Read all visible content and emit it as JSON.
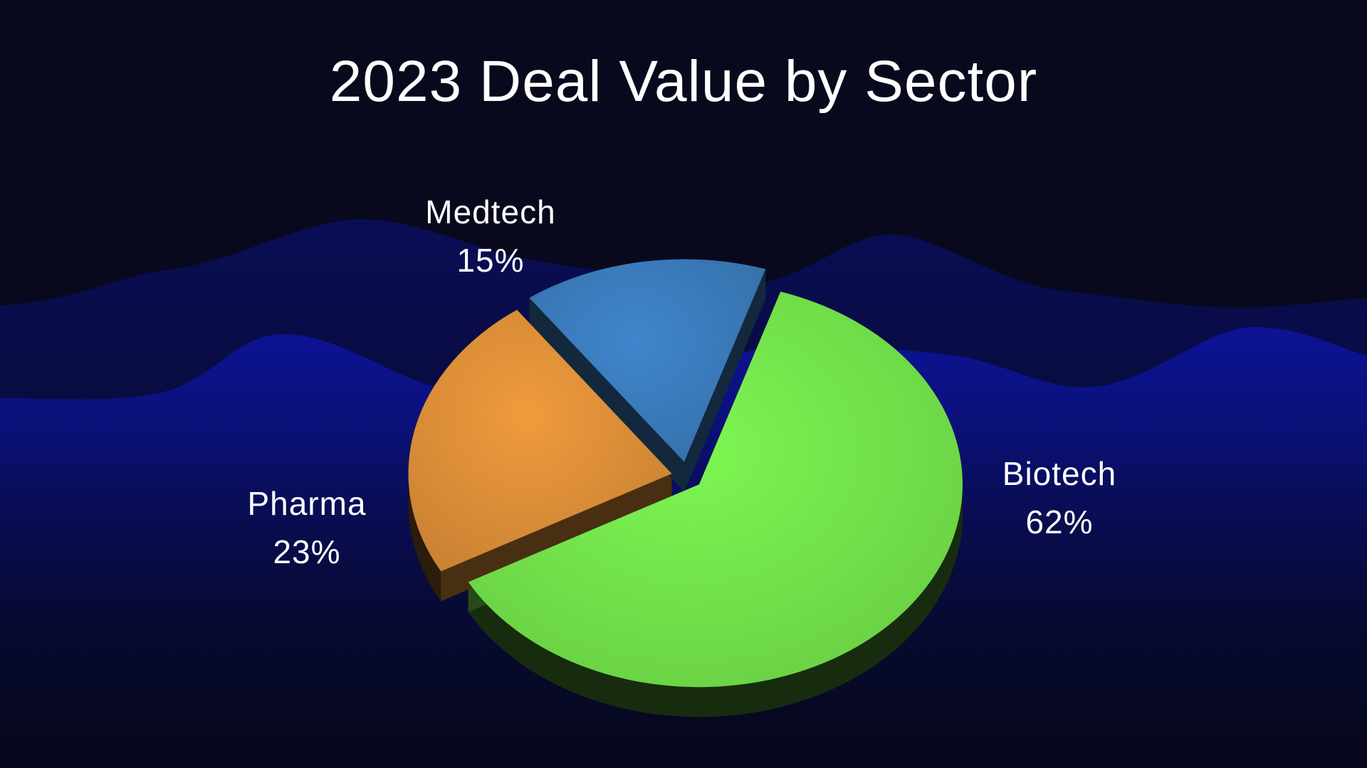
{
  "chart_data": {
    "type": "pie",
    "title": "2023 Deal Value by Sector",
    "slices": [
      {
        "name": "Biotech",
        "value": 62,
        "label": "62%",
        "color": "#7df752"
      },
      {
        "name": "Pharma",
        "value": 23,
        "label": "23%",
        "color": "#f09b3d"
      },
      {
        "name": "Medtech",
        "value": 15,
        "label": "15%",
        "color": "#3f86cc"
      }
    ],
    "unit": "%",
    "exploded": true,
    "style": "3d"
  },
  "colors": {
    "background": "#07081a",
    "wave": "#0c1492",
    "text": "#ffffff"
  }
}
